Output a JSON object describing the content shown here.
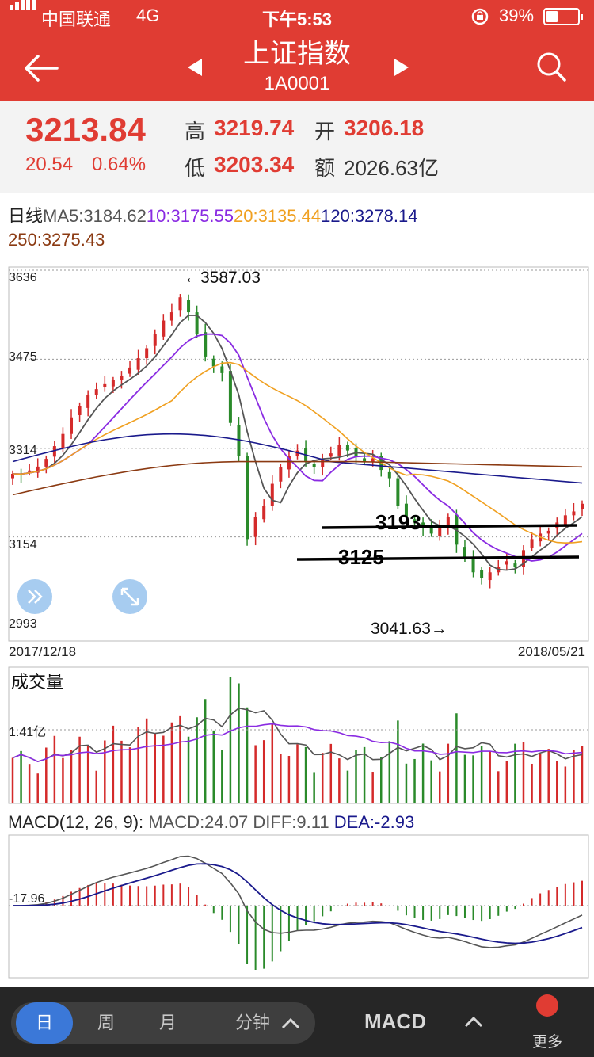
{
  "status_bar": {
    "carrier": "中国联通",
    "network": "4G",
    "time": "下午5:53",
    "battery": "39%"
  },
  "header": {
    "title": "上证指数",
    "code": "1A0001"
  },
  "quote": {
    "price": "3213.84",
    "change": "20.54",
    "change_pct": "0.64%",
    "high_label": "高",
    "high": "3219.74",
    "open_label": "开",
    "open": "3206.18",
    "low_label": "低",
    "low": "3203.34",
    "amount_label": "额",
    "amount": "2026.63亿"
  },
  "ma_legend": {
    "label": "日线",
    "ma5": "MA5:3184.62",
    "ma10": "10:3175.55",
    "ma20": "20:3135.44",
    "ma120": "120:3278.14",
    "ma250": "250:3275.43",
    "colors": {
      "ma5": "#555555",
      "ma10": "#8a2be2",
      "ma20": "#f0a020",
      "ma120": "#1a1a8c",
      "ma250": "#8b3a12"
    }
  },
  "kline": {
    "y_labels": [
      "3636",
      "3475",
      "3314",
      "3154",
      "2993"
    ],
    "high_note": "←3587.03",
    "low_note": "3041.63→",
    "drawn_levels": [
      "3193",
      "3125"
    ],
    "date_start": "2017/12/18",
    "date_end": "2018/05/21"
  },
  "volume": {
    "title": "成交量",
    "scale_label": "1.41亿"
  },
  "macd": {
    "params": "MACD(12, 26, 9):",
    "macd_value": "MACD:24.07",
    "diff_value": "DIFF:9.11",
    "dea_value": "DEA:-2.93",
    "scale_label": "-17.96"
  },
  "colors": {
    "up": "#d42a2a",
    "down": "#2a8a2a",
    "header": "#e03c33",
    "accent": "#3b78d8"
  },
  "bottom_bar": {
    "tabs": [
      "日",
      "周",
      "月",
      "分钟"
    ],
    "active_tab": "日",
    "indicator": "MACD",
    "more_label": "更多"
  },
  "chart_data": {
    "type": "candlestick",
    "title": "上证指数 日线",
    "x_range": [
      "2017/12/18",
      "2018/05/21"
    ],
    "ylim": [
      2993,
      3636
    ],
    "candles_close_approx": [
      3268,
      3267,
      3274,
      3281,
      3295,
      3318,
      3340,
      3370,
      3391,
      3410,
      3421,
      3430,
      3437,
      3445,
      3460,
      3477,
      3495,
      3520,
      3545,
      3560,
      3587,
      3560,
      3520,
      3480,
      3462,
      3450,
      3360,
      3300,
      3150,
      3190,
      3210,
      3250,
      3280,
      3300,
      3310,
      3290,
      3280,
      3295,
      3305,
      3320,
      3310,
      3300,
      3290,
      3296,
      3275,
      3260,
      3210,
      3190,
      3180,
      3170,
      3160,
      3170,
      3190,
      3140,
      3115,
      3090,
      3080,
      3090,
      3100,
      3110,
      3100,
      3130,
      3150,
      3160,
      3165,
      3180,
      3193,
      3200,
      3213.84
    ],
    "moving_averages": {
      "MA5": 3184.62,
      "MA10": 3175.55,
      "MA20": 3135.44,
      "MA120": 3278.14,
      "MA250": 3275.43
    },
    "annotations": [
      {
        "text": "←3587.03",
        "value": 3587.03
      },
      {
        "text": "3041.63→",
        "value": 3041.63
      },
      {
        "text": "3193",
        "value": 3193
      },
      {
        "text": "3125",
        "value": 3125
      }
    ],
    "volume_scale": "1.41亿",
    "macd": {
      "MACD": 24.07,
      "DIFF": 9.11,
      "DEA": -2.93,
      "scale": -17.96
    }
  }
}
